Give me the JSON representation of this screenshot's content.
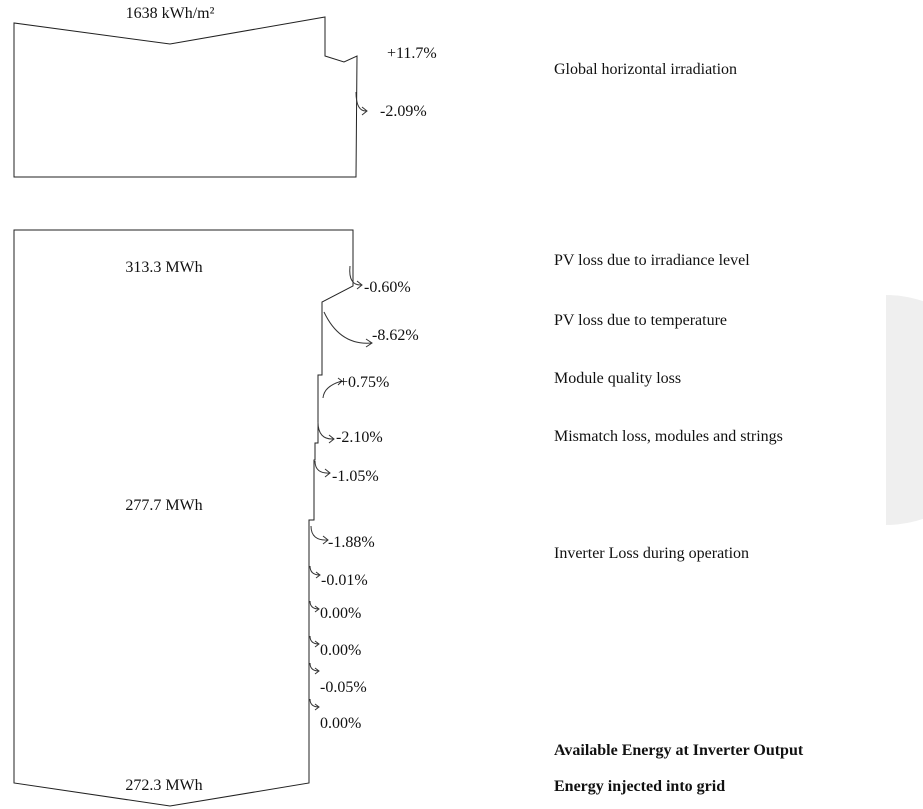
{
  "colors": {
    "line": "#222222",
    "text": "#111111",
    "background": "#ffffff",
    "decor": "#efefef"
  },
  "top": {
    "value": "1638 kWh/m²",
    "steps": [
      {
        "pct": "+11.7%"
      },
      {
        "pct": "-2.09%"
      }
    ]
  },
  "bottom": {
    "start_value": "313.3 MWh",
    "mid_value": "277.7 MWh",
    "end_value": "272.3 MWh",
    "steps": [
      {
        "pct": "-0.60%"
      },
      {
        "pct": "-8.62%"
      },
      {
        "pct": "+0.75%"
      },
      {
        "pct": "-2.10%"
      },
      {
        "pct": "-1.05%"
      },
      {
        "pct": "-1.88%"
      },
      {
        "pct": "-0.01%"
      },
      {
        "pct": "0.00%"
      },
      {
        "pct": "0.00%"
      },
      {
        "pct": "-0.05%"
      },
      {
        "pct": "0.00%"
      }
    ]
  },
  "labels": [
    {
      "text": "Global horizontal irradiation",
      "bold": false
    },
    {
      "text": "PV loss due to irradiance level",
      "bold": false
    },
    {
      "text": "PV loss due to temperature",
      "bold": false
    },
    {
      "text": "Module quality loss",
      "bold": false
    },
    {
      "text": "Mismatch loss, modules and strings",
      "bold": false
    },
    {
      "text": "Inverter Loss during operation",
      "bold": false
    },
    {
      "text": "Available Energy at Inverter Output",
      "bold": true
    },
    {
      "text": "Energy injected into grid",
      "bold": true
    }
  ]
}
